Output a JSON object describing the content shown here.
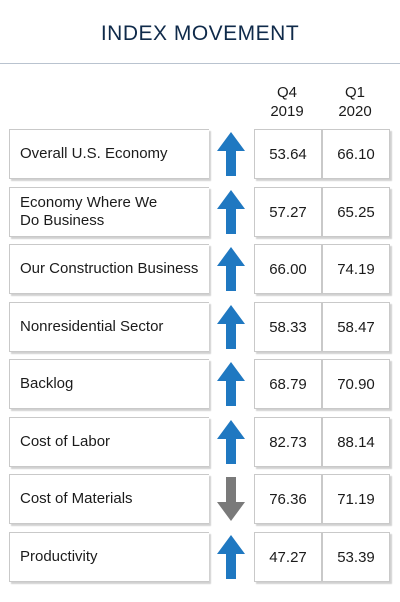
{
  "title": "INDEX MOVEMENT",
  "chart_data": {
    "type": "table",
    "columns": [
      {
        "line1": "Q4",
        "line2": "2019"
      },
      {
        "line1": "Q1",
        "line2": "2020"
      }
    ],
    "rows": [
      {
        "label": "Overall U.S. Economy",
        "direction": "up",
        "q4_2019": "53.64",
        "q1_2020": "66.10"
      },
      {
        "label": "Economy Where We Do Business",
        "direction": "up",
        "q4_2019": "57.27",
        "q1_2020": "65.25"
      },
      {
        "label": "Our Construction Business",
        "direction": "up",
        "q4_2019": "66.00",
        "q1_2020": "74.19"
      },
      {
        "label": "Nonresidential Sector",
        "direction": "up",
        "q4_2019": "58.33",
        "q1_2020": "58.47"
      },
      {
        "label": "Backlog",
        "direction": "up",
        "q4_2019": "68.79",
        "q1_2020": "70.90"
      },
      {
        "label": "Cost of Labor",
        "direction": "up",
        "q4_2019": "82.73",
        "q1_2020": "88.14"
      },
      {
        "label": "Cost of Materials",
        "direction": "down",
        "q4_2019": "76.36",
        "q1_2020": "71.19"
      },
      {
        "label": "Productivity",
        "direction": "up",
        "q4_2019": "47.27",
        "q1_2020": "53.39"
      }
    ]
  },
  "colors": {
    "title": "#0f2a4a",
    "arrow_up": "#1f78c1",
    "arrow_down": "#7a7a7a"
  }
}
